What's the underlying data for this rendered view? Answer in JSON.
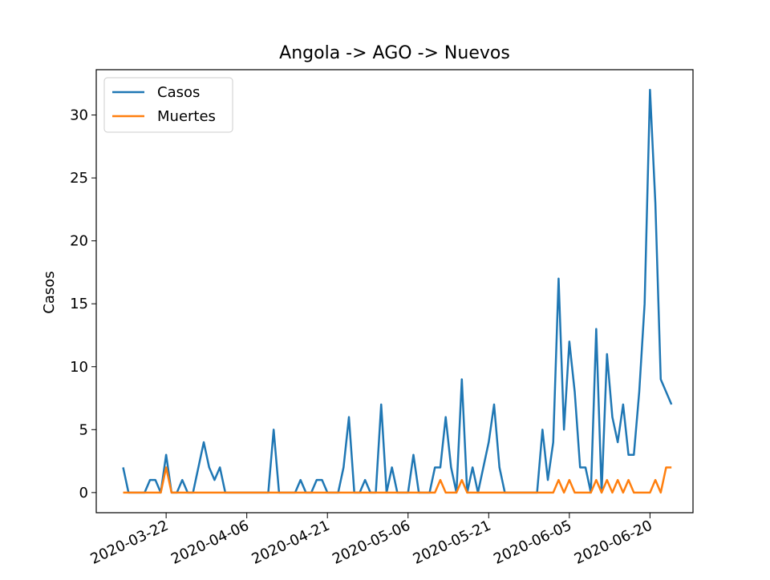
{
  "chart_data": {
    "type": "line",
    "title": "Angola -> AGO -> Nuevos",
    "y_label": "Casos",
    "x": [
      "2020-03-14",
      "2020-03-15",
      "2020-03-16",
      "2020-03-17",
      "2020-03-18",
      "2020-03-19",
      "2020-03-20",
      "2020-03-21",
      "2020-03-22",
      "2020-03-23",
      "2020-03-24",
      "2020-03-25",
      "2020-03-26",
      "2020-03-27",
      "2020-03-28",
      "2020-03-29",
      "2020-03-30",
      "2020-03-31",
      "2020-04-01",
      "2020-04-02",
      "2020-04-03",
      "2020-04-04",
      "2020-04-05",
      "2020-04-06",
      "2020-04-07",
      "2020-04-08",
      "2020-04-09",
      "2020-04-10",
      "2020-04-11",
      "2020-04-12",
      "2020-04-13",
      "2020-04-14",
      "2020-04-15",
      "2020-04-16",
      "2020-04-17",
      "2020-04-18",
      "2020-04-19",
      "2020-04-20",
      "2020-04-21",
      "2020-04-22",
      "2020-04-23",
      "2020-04-24",
      "2020-04-25",
      "2020-04-26",
      "2020-04-27",
      "2020-04-28",
      "2020-04-29",
      "2020-04-30",
      "2020-05-01",
      "2020-05-02",
      "2020-05-03",
      "2020-05-04",
      "2020-05-05",
      "2020-05-06",
      "2020-05-07",
      "2020-05-08",
      "2020-05-09",
      "2020-05-10",
      "2020-05-11",
      "2020-05-12",
      "2020-05-13",
      "2020-05-14",
      "2020-05-15",
      "2020-05-16",
      "2020-05-17",
      "2020-05-18",
      "2020-05-19",
      "2020-05-20",
      "2020-05-21",
      "2020-05-22",
      "2020-05-23",
      "2020-05-24",
      "2020-05-25",
      "2020-05-26",
      "2020-05-27",
      "2020-05-28",
      "2020-05-29",
      "2020-05-30",
      "2020-05-31",
      "2020-06-01",
      "2020-06-02",
      "2020-06-03",
      "2020-06-04",
      "2020-06-05",
      "2020-06-06",
      "2020-06-07",
      "2020-06-08",
      "2020-06-09",
      "2020-06-10",
      "2020-06-11",
      "2020-06-12",
      "2020-06-13",
      "2020-06-14",
      "2020-06-15",
      "2020-06-16",
      "2020-06-17",
      "2020-06-18",
      "2020-06-19",
      "2020-06-20",
      "2020-06-21",
      "2020-06-22",
      "2020-06-23",
      "2020-06-24"
    ],
    "series": [
      {
        "name": "Casos",
        "color": "#1f77b4",
        "values": [
          2,
          0,
          0,
          0,
          0,
          1,
          1,
          0,
          3,
          0,
          0,
          1,
          0,
          0,
          2,
          4,
          2,
          1,
          2,
          0,
          0,
          0,
          0,
          0,
          0,
          0,
          0,
          0,
          5,
          0,
          0,
          0,
          0,
          1,
          0,
          0,
          1,
          1,
          0,
          0,
          0,
          2,
          6,
          0,
          0,
          1,
          0,
          0,
          7,
          0,
          2,
          0,
          0,
          0,
          3,
          0,
          0,
          0,
          2,
          2,
          6,
          2,
          0,
          9,
          0,
          2,
          0,
          2,
          4,
          7,
          2,
          0,
          0,
          0,
          0,
          0,
          0,
          0,
          5,
          1,
          4,
          17,
          5,
          12,
          8,
          2,
          2,
          0,
          13,
          0,
          11,
          6,
          4,
          7,
          3,
          3,
          8,
          15,
          32,
          23,
          9,
          8,
          7
        ]
      },
      {
        "name": "Muertes",
        "color": "#ff7f0e",
        "values": [
          0,
          0,
          0,
          0,
          0,
          0,
          0,
          0,
          2,
          0,
          0,
          0,
          0,
          0,
          0,
          0,
          0,
          0,
          0,
          0,
          0,
          0,
          0,
          0,
          0,
          0,
          0,
          0,
          0,
          0,
          0,
          0,
          0,
          0,
          0,
          0,
          0,
          0,
          0,
          0,
          0,
          0,
          0,
          0,
          0,
          0,
          0,
          0,
          0,
          0,
          0,
          0,
          0,
          0,
          0,
          0,
          0,
          0,
          0,
          1,
          0,
          0,
          0,
          1,
          0,
          0,
          0,
          0,
          0,
          0,
          0,
          0,
          0,
          0,
          0,
          0,
          0,
          0,
          0,
          0,
          0,
          1,
          0,
          1,
          0,
          0,
          0,
          0,
          1,
          0,
          1,
          0,
          1,
          0,
          1,
          0,
          0,
          0,
          0,
          1,
          0,
          2,
          2
        ]
      }
    ],
    "xlim": [
      "2020-03-09",
      "2020-06-28"
    ],
    "xticks": [
      "2020-03-22",
      "2020-04-06",
      "2020-04-21",
      "2020-05-06",
      "2020-05-21",
      "2020-06-05",
      "2020-06-20"
    ],
    "ylim": [
      -1.6,
      33.6
    ],
    "yticks": [
      0,
      5,
      10,
      15,
      20,
      25,
      30
    ],
    "legend": "upper left"
  }
}
